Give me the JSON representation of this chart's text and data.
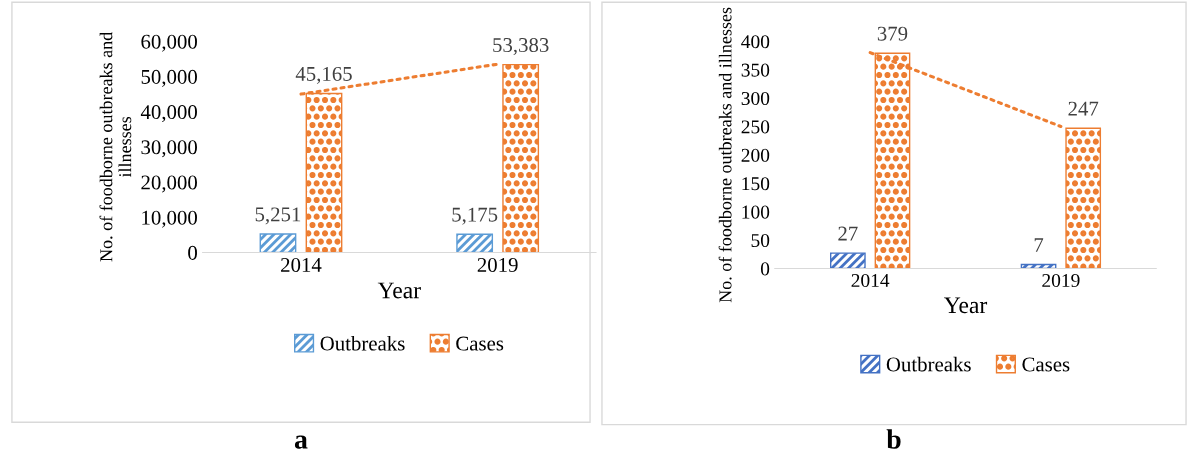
{
  "chart_data": [
    {
      "type": "bar",
      "categories": [
        "2014",
        "2019"
      ],
      "xlabel": "Year",
      "ylabel": "No. of foodborne outbreaks and illnesses",
      "series": [
        {
          "name": "Outbreaks",
          "color": "#5b9bd5",
          "values": [
            5251,
            5175
          ],
          "value_labels": [
            "5,251",
            "5,175"
          ]
        },
        {
          "name": "Cases",
          "color": "#ed7d31",
          "values": [
            45165,
            53383
          ],
          "value_labels": [
            "45,165",
            "53,383"
          ]
        },
        {
          "type": "line",
          "color": "#ed7d31",
          "line_style": "dotted",
          "values": [
            45000,
            53500
          ]
        }
      ],
      "ylim": [
        0,
        60000
      ],
      "yticks": [
        {
          "value": 0,
          "label": "0"
        },
        {
          "value": 10000,
          "label": "10,000"
        },
        {
          "value": 20000,
          "label": "20,000"
        },
        {
          "value": 30000,
          "label": "30,000"
        },
        {
          "value": 40000,
          "label": "40,000"
        },
        {
          "value": 50000,
          "label": "50,000"
        },
        {
          "value": 60000,
          "label": "60,000"
        }
      ],
      "legend": "bottom",
      "grid": false,
      "annotations": [
        "a"
      ]
    },
    {
      "type": "bar",
      "categories": [
        "2014",
        "2019"
      ],
      "xlabel": "Year",
      "ylabel": "No. of foodborne outbreaks and illnesses",
      "series": [
        {
          "name": "Outbreaks",
          "color": "#4472c4",
          "values": [
            27,
            7
          ],
          "value_labels": [
            "27",
            "7"
          ]
        },
        {
          "name": "Cases",
          "color": "#ed7d31",
          "values": [
            379,
            247
          ],
          "value_labels": [
            "379",
            "247"
          ]
        },
        {
          "type": "line",
          "color": "#ed7d31",
          "line_style": "dotted",
          "values": [
            380,
            250
          ]
        }
      ],
      "ylim": [
        0,
        400
      ],
      "yticks": [
        0,
        50,
        100,
        150,
        200,
        250,
        300,
        350,
        400
      ],
      "legend": "bottom",
      "grid": false,
      "annotations": [
        "b"
      ]
    }
  ]
}
